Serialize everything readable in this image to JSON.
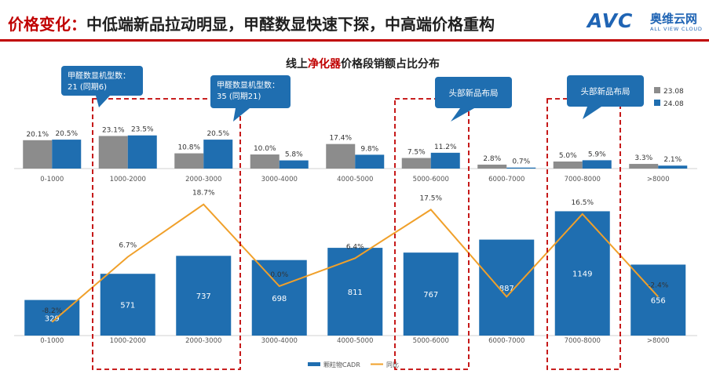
{
  "header": {
    "prefix": "价格变化：",
    "title": "中低端新品拉动明显，甲醛数显快速下探，中高端价格重构",
    "logo_text": "AVC",
    "logo_cn": "奥维云网",
    "logo_en": "ALL VIEW CLOUD"
  },
  "chart_title": {
    "before": "线上",
    "highlight": "净化器",
    "after": "价格段销额占比分布"
  },
  "callouts": [
    {
      "line1": "甲醛数显机型数：",
      "line2": "21 (同期6)"
    },
    {
      "line1": "甲醛数显机型数：",
      "line2": "35 (同期21)"
    },
    {
      "line1": "头部新品布局",
      "line2": ""
    },
    {
      "line1": "头部新品布局",
      "line2": ""
    }
  ],
  "colors": {
    "series_2023": "#8c8c8c",
    "series_2024": "#1f6eb0",
    "line": "#f0a02a",
    "highlight_box": "#c00000",
    "callout": "#1f6eb0",
    "accent_text": "#c00000"
  },
  "chart_data": [
    {
      "type": "bar",
      "categories": [
        "0-1000",
        "1000-2000",
        "2000-3000",
        "3000-4000",
        "4000-5000",
        "5000-6000",
        "6000-7000",
        "7000-8000",
        ">8000"
      ],
      "series": [
        {
          "name": "23.08",
          "values": [
            20.1,
            23.1,
            10.8,
            10.0,
            17.4,
            7.5,
            2.8,
            5.0,
            3.3
          ],
          "labels": [
            "20.1%",
            "23.1%",
            "10.8%",
            "10.0%",
            "17.4%",
            "7.5%",
            "2.8%",
            "5.0%",
            "3.3%"
          ]
        },
        {
          "name": "24.08",
          "values": [
            20.5,
            23.5,
            20.5,
            5.8,
            9.8,
            11.2,
            0.7,
            5.9,
            2.1
          ],
          "labels": [
            "20.5%",
            "23.5%",
            "20.5%",
            "5.8%",
            "9.8%",
            "11.2%",
            "0.7%",
            "5.9%",
            "2.1%"
          ]
        }
      ],
      "legend": "top-right"
    },
    {
      "type": "bar",
      "categories": [
        "0-1000",
        "1000-2000",
        "2000-3000",
        "3000-4000",
        "4000-5000",
        "5000-6000",
        "6000-7000",
        "7000-8000",
        ">8000"
      ],
      "series": [
        {
          "name": "颗粒物CADR",
          "type": "bar",
          "values": [
            329,
            571,
            737,
            698,
            811,
            767,
            887,
            1149,
            656
          ],
          "labels": [
            "329",
            "571",
            "737",
            "698",
            "811",
            "767",
            "887",
            "1149",
            "656"
          ]
        },
        {
          "name": "同比",
          "type": "line",
          "values": [
            -8.2,
            6.7,
            18.7,
            0.0,
            6.4,
            17.5,
            -2.4,
            16.5,
            -2.4
          ],
          "labels": [
            "-8.2%",
            "6.7%",
            "18.7%",
            "0.0%",
            "6.4%",
            "17.5%",
            "",
            "16.5%",
            "-2.4%"
          ]
        }
      ],
      "legend": "bottom-center"
    }
  ]
}
